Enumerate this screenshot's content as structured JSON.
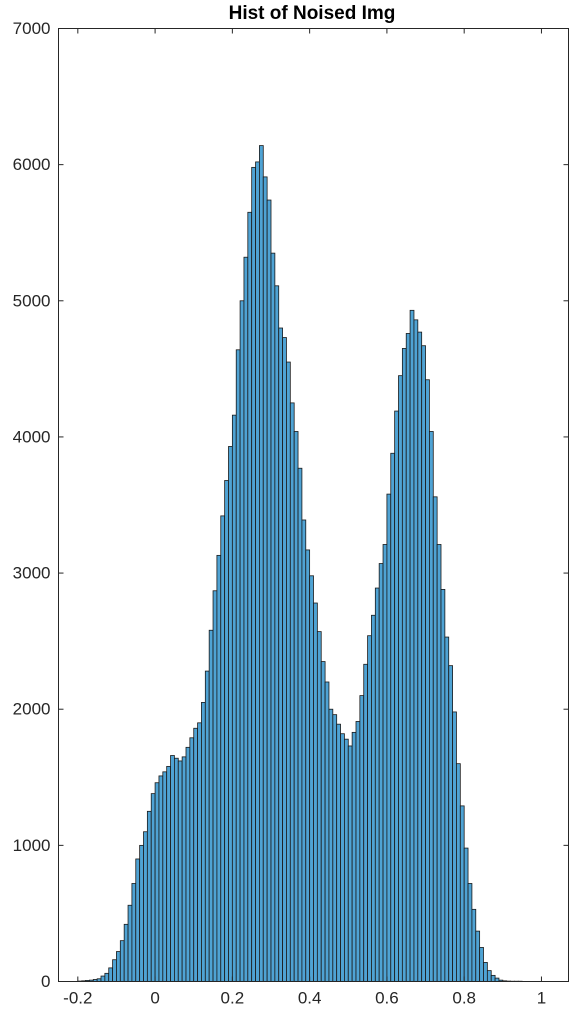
{
  "chart_data": {
    "type": "bar",
    "title": "Hist of Noised Img",
    "xlabel": "",
    "ylabel": "",
    "xlim": [
      -0.25,
      1.07
    ],
    "ylim": [
      0,
      7000
    ],
    "xticks": [
      -0.2,
      0,
      0.2,
      0.4,
      0.6,
      0.8,
      1
    ],
    "xtick_labels": [
      "-0.2",
      "0",
      "0.2",
      "0.4",
      "0.6",
      "0.8",
      "1"
    ],
    "yticks": [
      0,
      1000,
      2000,
      3000,
      4000,
      5000,
      6000,
      7000
    ],
    "ytick_labels": [
      "0",
      "1000",
      "2000",
      "3000",
      "4000",
      "5000",
      "6000",
      "7000"
    ],
    "grid": false,
    "bar_color": "#4fa3d4",
    "edge_color": "#1a1a1a",
    "bin_start": -0.2,
    "bin_width": 0.01,
    "values": [
      3,
      5,
      8,
      10,
      15,
      20,
      40,
      60,
      100,
      160,
      220,
      300,
      420,
      560,
      720,
      900,
      1000,
      1100,
      1250,
      1380,
      1460,
      1510,
      1540,
      1580,
      1660,
      1640,
      1620,
      1650,
      1720,
      1790,
      1860,
      1900,
      2050,
      2280,
      2580,
      2870,
      3130,
      3420,
      3680,
      3930,
      4160,
      4640,
      5000,
      5320,
      5650,
      5980,
      6020,
      6140,
      5910,
      5740,
      5350,
      5110,
      4800,
      4730,
      4550,
      4250,
      4040,
      3770,
      3390,
      3170,
      2980,
      2780,
      2570,
      2350,
      2200,
      2000,
      1960,
      1890,
      1820,
      1780,
      1730,
      1830,
      1910,
      2100,
      2330,
      2540,
      2690,
      2890,
      3070,
      3210,
      3580,
      3880,
      4190,
      4450,
      4650,
      4760,
      4930,
      4860,
      4770,
      4670,
      4420,
      4040,
      3560,
      3210,
      2880,
      2530,
      2320,
      1980,
      1600,
      1290,
      980,
      720,
      530,
      370,
      250,
      140,
      80,
      45,
      25,
      10,
      5,
      3,
      2,
      2,
      2
    ]
  }
}
